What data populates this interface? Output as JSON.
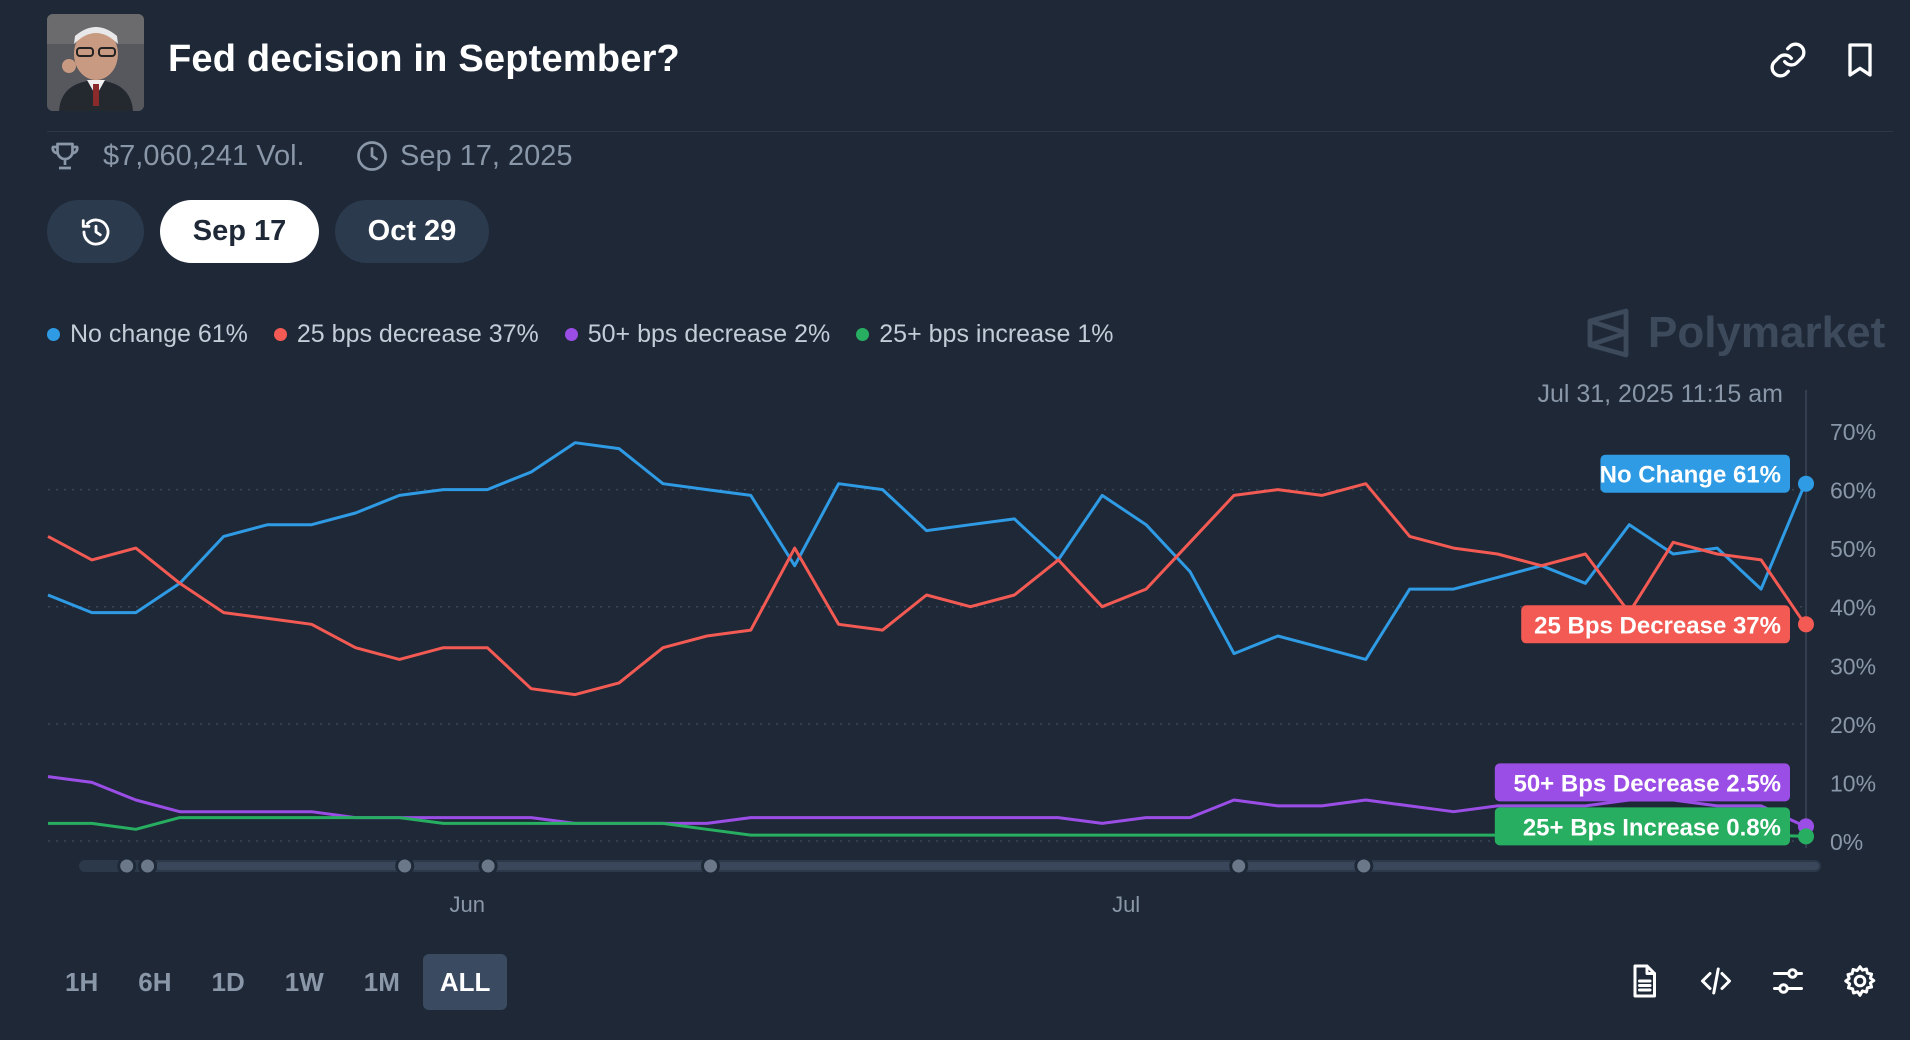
{
  "header": {
    "title": "Fed decision in September?",
    "volume": "$7,060,241 Vol.",
    "end_date": "Sep 17, 2025"
  },
  "date_tabs": [
    {
      "label": "Sep 17",
      "active": true
    },
    {
      "label": "Oct 29",
      "active": false
    }
  ],
  "legend": [
    {
      "label": "No change 61%",
      "color": "#2f9be5"
    },
    {
      "label": "25 bps decrease 37%",
      "color": "#f25a53"
    },
    {
      "label": "50+ bps decrease 2%",
      "color": "#9b4ee6"
    },
    {
      "label": "25+ bps increase 1%",
      "color": "#27ae60"
    }
  ],
  "brand": {
    "name": "Polymarket"
  },
  "chart_timestamp": "Jul 31, 2025 11:15 am",
  "range_buttons": [
    {
      "label": "1H",
      "active": false
    },
    {
      "label": "6H",
      "active": false
    },
    {
      "label": "1D",
      "active": false
    },
    {
      "label": "1W",
      "active": false
    },
    {
      "label": "1M",
      "active": false
    },
    {
      "label": "ALL",
      "active": true
    }
  ],
  "footer_icons": [
    "document-icon",
    "code-icon",
    "sliders-icon",
    "settings-icon"
  ],
  "chart_data": {
    "type": "line",
    "x": [
      "May 12",
      "May 14",
      "May 16",
      "May 18",
      "May 20",
      "May 22",
      "May 24",
      "May 26",
      "May 28",
      "May 30",
      "Jun 1",
      "Jun 3",
      "Jun 5",
      "Jun 7",
      "Jun 9",
      "Jun 11",
      "Jun 13",
      "Jun 15",
      "Jun 17",
      "Jun 19",
      "Jun 21",
      "Jun 23",
      "Jun 25",
      "Jun 27",
      "Jun 29",
      "Jul 1",
      "Jul 3",
      "Jul 5",
      "Jul 7",
      "Jul 9",
      "Jul 11",
      "Jul 13",
      "Jul 15",
      "Jul 17",
      "Jul 19",
      "Jul 21",
      "Jul 23",
      "Jul 25",
      "Jul 27",
      "Jul 29",
      "Jul 31"
    ],
    "xticks": [
      "Jun",
      "Jul"
    ],
    "ylim": [
      0,
      70
    ],
    "yticks": [
      "0%",
      "10%",
      "20%",
      "30%",
      "40%",
      "50%",
      "60%",
      "70%"
    ],
    "grid": true,
    "series": [
      {
        "name": "No change",
        "end_label": "No Change 61%",
        "color": "#2f9be5",
        "values": [
          42,
          39,
          39,
          44,
          52,
          54,
          54,
          56,
          59,
          60,
          60,
          63,
          68,
          67,
          61,
          60,
          59,
          47,
          61,
          60,
          53,
          54,
          55,
          48,
          59,
          54,
          46,
          32,
          35,
          33,
          31,
          43,
          43,
          45,
          47,
          44,
          54,
          49,
          50,
          43,
          61
        ]
      },
      {
        "name": "25 bps decrease",
        "end_label": "25 Bps Decrease 37%",
        "color": "#f25a53",
        "values": [
          52,
          48,
          50,
          44,
          39,
          38,
          37,
          33,
          31,
          33,
          33,
          26,
          25,
          27,
          33,
          35,
          36,
          50,
          37,
          36,
          42,
          40,
          42,
          48,
          40,
          43,
          51,
          59,
          60,
          59,
          61,
          52,
          50,
          49,
          47,
          49,
          39,
          51,
          49,
          48,
          37
        ]
      },
      {
        "name": "50+ bps decrease",
        "end_label": "50+ Bps Decrease 2.5%",
        "color": "#9b4ee6",
        "values": [
          11,
          10,
          7,
          5,
          5,
          5,
          5,
          4,
          4,
          4,
          4,
          4,
          3,
          3,
          3,
          3,
          4,
          4,
          4,
          4,
          4,
          4,
          4,
          4,
          3,
          4,
          4,
          7,
          6,
          6,
          7,
          6,
          5,
          6,
          6,
          6,
          7,
          7,
          6,
          6,
          2.5
        ]
      },
      {
        "name": "25+ bps increase",
        "end_label": "25+ Bps Increase 0.8%",
        "color": "#27ae60",
        "values": [
          3,
          3,
          2,
          4,
          4,
          4,
          4,
          4,
          4,
          3,
          3,
          3,
          3,
          3,
          3,
          2,
          1,
          1,
          1,
          1,
          1,
          1,
          1,
          1,
          1,
          1,
          1,
          1,
          1,
          1,
          1,
          1,
          1,
          1,
          1,
          1,
          1,
          1,
          1,
          1,
          0.8
        ]
      }
    ]
  }
}
